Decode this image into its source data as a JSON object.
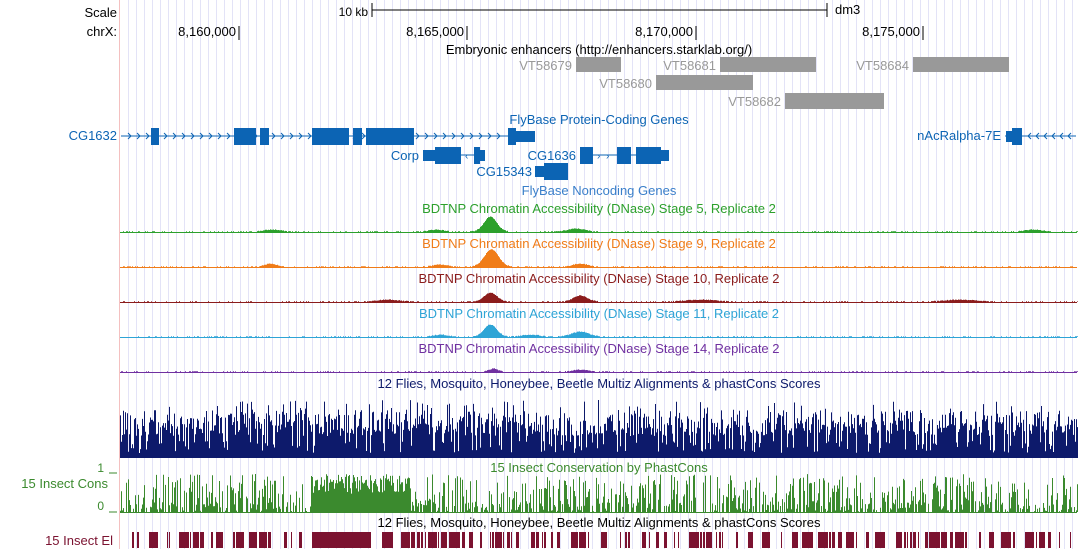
{
  "ruler": {
    "scale_label": "Scale",
    "scale_bar_text": "10 kb",
    "assembly": "dm3",
    "chrom_label": "chrX:",
    "positions": [
      "8,160,000",
      "8,165,000",
      "8,170,000",
      "8,175,000"
    ]
  },
  "tracks": {
    "enhancers": {
      "title": "Embryonic enhancers (http://enhancers.starklab.org/)",
      "color": "#999999",
      "items": [
        {
          "name": "VT58679"
        },
        {
          "name": "VT58681"
        },
        {
          "name": "VT58680"
        },
        {
          "name": "VT58684"
        },
        {
          "name": "VT58682"
        }
      ]
    },
    "coding_genes": {
      "title": "FlyBase Protein-Coding Genes",
      "color": "#0c64b4",
      "genes": [
        {
          "name": "CG1632"
        },
        {
          "name": "nAcRalpha-7E"
        },
        {
          "name": "Corp"
        },
        {
          "name": "CG1636"
        },
        {
          "name": "CG15343"
        }
      ]
    },
    "noncoding_genes": {
      "title": "FlyBase Noncoding Genes",
      "color": "#3a7fca"
    },
    "dnase": [
      {
        "title": "BDTNP Chromatin Accessibility (DNase) Stage 5, Replicate 2",
        "color": "#2ca02c"
      },
      {
        "title": "BDTNP Chromatin Accessibility (DNase) Stage 9, Replicate 2",
        "color": "#f07c18"
      },
      {
        "title": "BDTNP Chromatin Accessibility (DNase) Stage 10, Replicate 2",
        "color": "#8b1c1c"
      },
      {
        "title": "BDTNP Chromatin Accessibility (DNase) Stage 11, Replicate 2",
        "color": "#2ea4d6"
      },
      {
        "title": "BDTNP Chromatin Accessibility (DNase) Stage 14, Replicate 2",
        "color": "#7030a0"
      }
    ],
    "multiz": {
      "title": "12 Flies, Mosquito, Honeybee, Beetle Multiz Alignments & phastCons Scores",
      "color": "#0d1a6b"
    },
    "insect_cons": {
      "side_label": "15 Insect Cons",
      "title": "15 Insect Conservation by PhastCons",
      "axis_max": "1",
      "axis_min": "0",
      "color": "#3b8a2e"
    },
    "insect_el": {
      "side_label": "15 Insect El",
      "title": "12 Flies, Mosquito, Honeybee, Beetle Multiz Alignments & phastCons Scores",
      "color": "#7b1230"
    }
  }
}
